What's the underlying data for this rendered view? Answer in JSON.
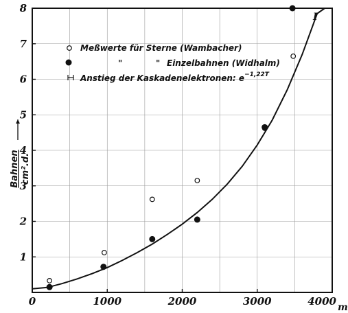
{
  "chart_data": {
    "type": "scatter",
    "x_unit": "m",
    "xlim": [
      0,
      4000
    ],
    "ylim": [
      0,
      8
    ],
    "x_ticks": [
      "0",
      "1000",
      "2000",
      "3000",
      "4000"
    ],
    "y_ticks": [
      "1",
      "2",
      "3",
      "4",
      "5",
      "6",
      "7",
      "8"
    ],
    "ylabel_numerator": "Bahnen",
    "ylabel_denominator": "cm².d.",
    "grid": true,
    "legend_placement": "top-left",
    "legend": {
      "stars": "Meßwerte für Sterne (Wambacher)",
      "ditto_1": "\"",
      "ditto_2": "\"",
      "single": "Einzelbahnen (Widhalm)",
      "cascade": "Anstieg der Kaskadenelektronen:",
      "cascade_formula": "e",
      "cascade_exponent": "−1,22T"
    },
    "annotation": "I",
    "series": [
      {
        "name": "Meßwerte für Sterne (Wambacher)",
        "marker": "open-circle",
        "x": [
          230,
          960,
          1600,
          2200,
          3100,
          3480
        ],
        "y": [
          0.33,
          1.12,
          2.62,
          3.15,
          4.62,
          6.65
        ]
      },
      {
        "name": "Einzelbahnen (Widhalm)",
        "marker": "filled-circle",
        "x": [
          230,
          950,
          1600,
          2200,
          3100,
          3470
        ],
        "y": [
          0.15,
          0.72,
          1.5,
          2.05,
          4.65,
          8.0
        ]
      },
      {
        "name": "curve",
        "marker": "line",
        "x": [
          0,
          200,
          400,
          600,
          800,
          1000,
          1200,
          1400,
          1600,
          1800,
          2000,
          2200,
          2400,
          2600,
          2800,
          3000,
          3200,
          3400,
          3600,
          3800,
          3900
        ],
        "y": [
          0.1,
          0.14,
          0.25,
          0.38,
          0.53,
          0.7,
          0.9,
          1.12,
          1.36,
          1.63,
          1.92,
          2.25,
          2.62,
          3.05,
          3.55,
          4.15,
          4.85,
          5.7,
          6.7,
          7.85,
          8.0
        ]
      }
    ]
  }
}
